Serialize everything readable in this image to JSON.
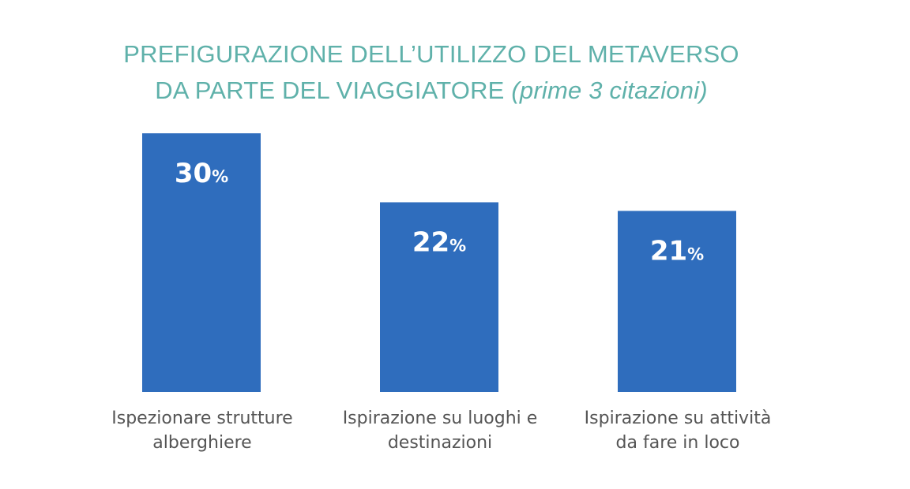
{
  "chart_data": {
    "type": "bar",
    "title_line1": "PREFIGURAZIONE DELL’UTILIZZO DEL METAVERSO",
    "title_line2_main": "DA PARTE DEL VIAGGIATORE ",
    "title_line2_italic": "(prime 3 citazioni)",
    "categories": [
      [
        "Ispezionare strutture",
        "alberghiere"
      ],
      [
        "Ispirazione su luoghi e",
        "destinazioni"
      ],
      [
        "Ispirazione su attività",
        "da fare in loco"
      ]
    ],
    "values": [
      30,
      22,
      21
    ],
    "value_suffix": "%",
    "ylim": [
      0,
      30
    ],
    "grid": false,
    "legend": "none",
    "colors": {
      "bar": "#2f6dbd",
      "title": "#5fb1aa",
      "label": "#555555",
      "value_text": "#ffffff"
    }
  }
}
